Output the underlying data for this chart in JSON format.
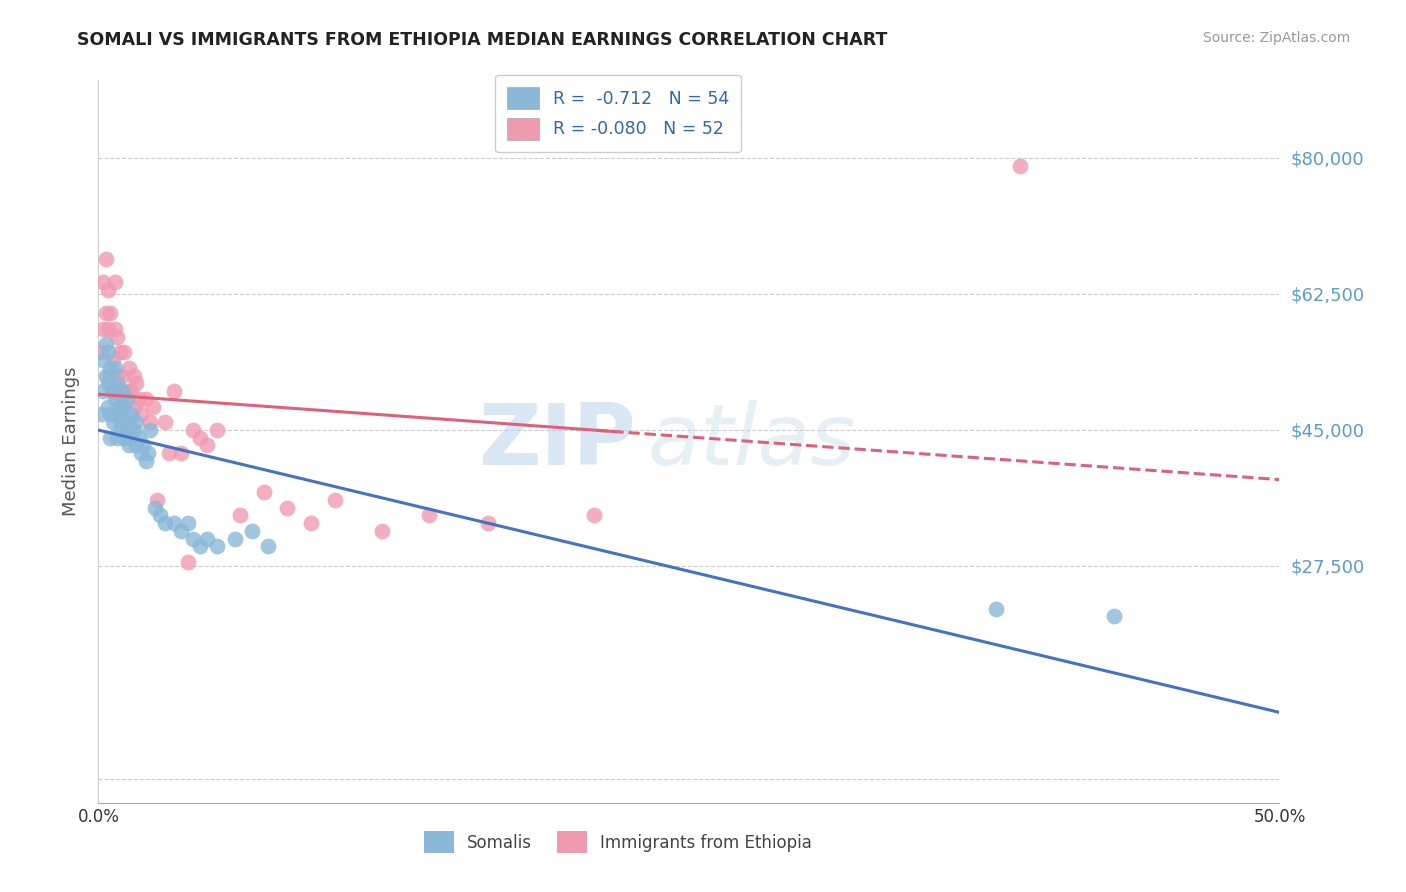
{
  "title": "SOMALI VS IMMIGRANTS FROM ETHIOPIA MEDIAN EARNINGS CORRELATION CHART",
  "source": "Source: ZipAtlas.com",
  "ylabel": "Median Earnings",
  "xlim": [
    0.0,
    0.5
  ],
  "ylim": [
    -3000,
    90000
  ],
  "yticks": [
    0,
    27500,
    45000,
    62500,
    80000
  ],
  "ytick_labels": [
    "",
    "$27,500",
    "$45,000",
    "$62,500",
    "$80,000"
  ],
  "somali_color": "#8ab8d8",
  "ethiopia_color": "#f09ab0",
  "somali_line_color": "#4472c4",
  "ethiopia_line_color": "#e0607a",
  "watermark_zip": "ZIP",
  "watermark_atlas": "atlas",
  "background_color": "#ffffff",
  "grid_color": "#cccccc",
  "r_somali": -0.712,
  "n_somali": 54,
  "r_ethiopia": -0.08,
  "n_ethiopia": 52,
  "somali_x": [
    0.001,
    0.002,
    0.002,
    0.003,
    0.003,
    0.004,
    0.004,
    0.004,
    0.005,
    0.005,
    0.005,
    0.006,
    0.006,
    0.007,
    0.007,
    0.008,
    0.008,
    0.008,
    0.009,
    0.009,
    0.01,
    0.01,
    0.011,
    0.011,
    0.012,
    0.012,
    0.013,
    0.013,
    0.014,
    0.014,
    0.015,
    0.016,
    0.016,
    0.017,
    0.018,
    0.019,
    0.02,
    0.021,
    0.022,
    0.024,
    0.026,
    0.028,
    0.032,
    0.035,
    0.038,
    0.04,
    0.043,
    0.046,
    0.05,
    0.058,
    0.065,
    0.072,
    0.38,
    0.43
  ],
  "somali_y": [
    47000,
    50000,
    54000,
    52000,
    56000,
    48000,
    51000,
    55000,
    44000,
    47000,
    53000,
    46000,
    50000,
    49000,
    53000,
    44000,
    47000,
    51000,
    45000,
    48000,
    46000,
    50000,
    44000,
    48000,
    45000,
    49000,
    43000,
    46000,
    44000,
    47000,
    45000,
    43000,
    46000,
    44000,
    42000,
    43000,
    41000,
    42000,
    45000,
    35000,
    34000,
    33000,
    33000,
    32000,
    33000,
    31000,
    30000,
    31000,
    30000,
    31000,
    32000,
    30000,
    22000,
    21000
  ],
  "ethiopia_x": [
    0.001,
    0.002,
    0.002,
    0.003,
    0.003,
    0.004,
    0.004,
    0.005,
    0.005,
    0.006,
    0.006,
    0.007,
    0.007,
    0.008,
    0.008,
    0.009,
    0.009,
    0.01,
    0.01,
    0.011,
    0.011,
    0.012,
    0.013,
    0.014,
    0.015,
    0.015,
    0.016,
    0.017,
    0.018,
    0.02,
    0.022,
    0.023,
    0.025,
    0.028,
    0.03,
    0.032,
    0.035,
    0.038,
    0.04,
    0.043,
    0.046,
    0.05,
    0.06,
    0.07,
    0.08,
    0.09,
    0.1,
    0.12,
    0.14,
    0.165,
    0.21,
    0.39
  ],
  "ethiopia_y": [
    55000,
    58000,
    64000,
    67000,
    60000,
    58000,
    63000,
    52000,
    60000,
    54000,
    50000,
    58000,
    64000,
    52000,
    57000,
    50000,
    55000,
    49000,
    52000,
    48000,
    55000,
    50000,
    53000,
    50000,
    52000,
    48000,
    51000,
    49000,
    47000,
    49000,
    46000,
    48000,
    36000,
    46000,
    42000,
    50000,
    42000,
    28000,
    45000,
    44000,
    43000,
    45000,
    34000,
    37000,
    35000,
    33000,
    36000,
    32000,
    34000,
    33000,
    34000,
    79000
  ]
}
